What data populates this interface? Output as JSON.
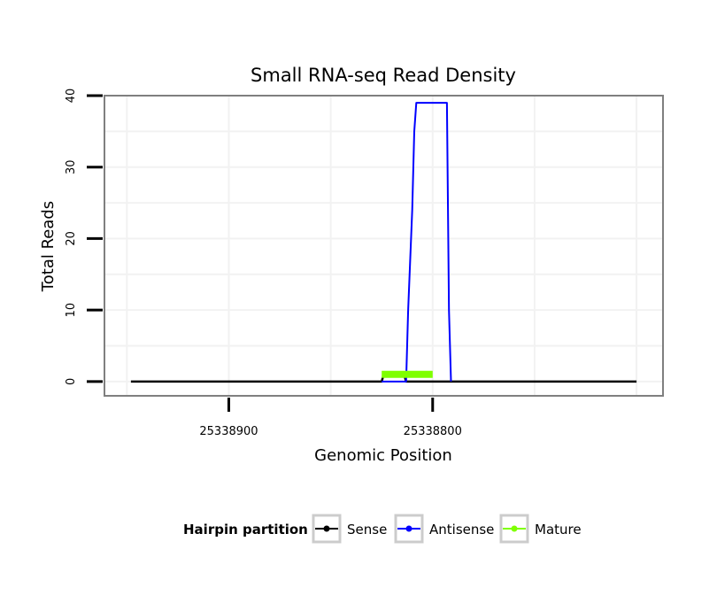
{
  "chart_data": {
    "type": "line",
    "title": "Small RNA-seq Read Density",
    "xlabel": "Genomic Position",
    "ylabel": "Total Reads",
    "x_reversed": true,
    "xlim": [
      25338961,
      25338687
    ],
    "ylim": [
      -2,
      40
    ],
    "x_ticks": [
      {
        "value": 25338900,
        "label": "25338900"
      },
      {
        "value": 25338800,
        "label": "25338800"
      }
    ],
    "y_ticks": [
      {
        "value": 0,
        "label": "0"
      },
      {
        "value": 10,
        "label": "10"
      },
      {
        "value": 20,
        "label": "20"
      },
      {
        "value": 30,
        "label": "30"
      },
      {
        "value": 40,
        "label": "40"
      }
    ],
    "series": [
      {
        "name": "Sense",
        "color": "#000000",
        "x": [
          25338948,
          25338825,
          25338824,
          25338814,
          25338813,
          25338700
        ],
        "y": [
          0,
          0,
          1,
          1,
          0,
          0
        ]
      },
      {
        "name": "Antisense",
        "color": "#0000ff",
        "x": [
          25338825,
          25338813,
          25338812,
          25338810,
          25338809,
          25338808,
          25338807,
          25338793,
          25338792,
          25338791
        ],
        "y": [
          0,
          0,
          10,
          24,
          35,
          39,
          39,
          39,
          10,
          0
        ]
      },
      {
        "name": "Mature",
        "color": "#7fff00",
        "x": [
          25338825,
          25338800
        ],
        "y": [
          1,
          1
        ]
      }
    ],
    "legend": {
      "title": "Hairpin partition",
      "position": "bottom",
      "items": [
        "Sense",
        "Antisense",
        "Mature"
      ]
    }
  }
}
